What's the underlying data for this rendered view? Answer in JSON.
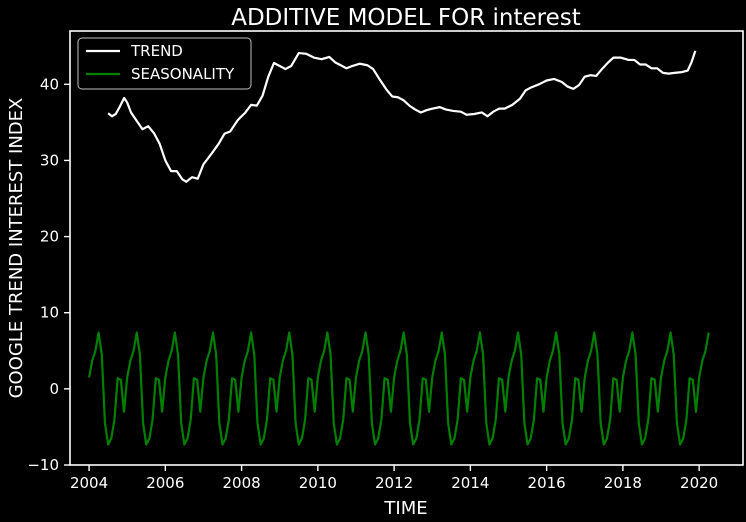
{
  "chart_data": {
    "type": "line",
    "title": "ADDITIVE MODEL FOR interest",
    "xlabel": "TIME",
    "ylabel": "GOOGLE TREND INTEREST INDEX",
    "xlim": [
      2003.5,
      2021.15
    ],
    "ylim": [
      -10,
      47
    ],
    "xticks": [
      2004,
      2006,
      2008,
      2010,
      2012,
      2014,
      2016,
      2018,
      2020
    ],
    "yticks": [
      -10,
      0,
      10,
      20,
      30,
      40
    ],
    "grid": false,
    "legend_position": "top-left",
    "background": "#000000",
    "series": [
      {
        "name": "TREND",
        "color": "#ffffff",
        "points": [
          [
            2004.5,
            36.2
          ],
          [
            2004.6,
            35.8
          ],
          [
            2004.7,
            36.1
          ],
          [
            2004.8,
            37.0
          ],
          [
            2004.92,
            38.2
          ],
          [
            2005.0,
            37.6
          ],
          [
            2005.1,
            36.3
          ],
          [
            2005.25,
            35.2
          ],
          [
            2005.4,
            34.1
          ],
          [
            2005.55,
            34.5
          ],
          [
            2005.7,
            33.6
          ],
          [
            2005.85,
            32.2
          ],
          [
            2006.0,
            30.0
          ],
          [
            2006.15,
            28.6
          ],
          [
            2006.3,
            28.6
          ],
          [
            2006.45,
            27.5
          ],
          [
            2006.55,
            27.2
          ],
          [
            2006.7,
            27.8
          ],
          [
            2006.85,
            27.6
          ],
          [
            2007.0,
            29.5
          ],
          [
            2007.2,
            30.8
          ],
          [
            2007.4,
            32.2
          ],
          [
            2007.55,
            33.5
          ],
          [
            2007.7,
            33.8
          ],
          [
            2007.9,
            35.3
          ],
          [
            2008.1,
            36.3
          ],
          [
            2008.25,
            37.3
          ],
          [
            2008.4,
            37.2
          ],
          [
            2008.55,
            38.5
          ],
          [
            2008.7,
            41.0
          ],
          [
            2008.85,
            42.8
          ],
          [
            2009.0,
            42.4
          ],
          [
            2009.15,
            42.0
          ],
          [
            2009.3,
            42.4
          ],
          [
            2009.5,
            44.1
          ],
          [
            2009.7,
            44.0
          ],
          [
            2009.9,
            43.5
          ],
          [
            2010.1,
            43.3
          ],
          [
            2010.3,
            43.6
          ],
          [
            2010.45,
            42.9
          ],
          [
            2010.6,
            42.5
          ],
          [
            2010.75,
            42.1
          ],
          [
            2010.9,
            42.4
          ],
          [
            2011.1,
            42.7
          ],
          [
            2011.3,
            42.5
          ],
          [
            2011.45,
            42.0
          ],
          [
            2011.6,
            40.8
          ],
          [
            2011.8,
            39.3
          ],
          [
            2011.95,
            38.4
          ],
          [
            2012.1,
            38.3
          ],
          [
            2012.25,
            37.9
          ],
          [
            2012.4,
            37.2
          ],
          [
            2012.55,
            36.7
          ],
          [
            2012.7,
            36.3
          ],
          [
            2012.85,
            36.6
          ],
          [
            2013.0,
            36.8
          ],
          [
            2013.2,
            37.0
          ],
          [
            2013.35,
            36.7
          ],
          [
            2013.55,
            36.5
          ],
          [
            2013.75,
            36.4
          ],
          [
            2013.9,
            36.0
          ],
          [
            2014.1,
            36.1
          ],
          [
            2014.3,
            36.3
          ],
          [
            2014.45,
            35.8
          ],
          [
            2014.6,
            36.4
          ],
          [
            2014.75,
            36.8
          ],
          [
            2014.9,
            36.8
          ],
          [
            2015.1,
            37.3
          ],
          [
            2015.3,
            38.1
          ],
          [
            2015.45,
            39.2
          ],
          [
            2015.6,
            39.6
          ],
          [
            2015.8,
            40.0
          ],
          [
            2016.0,
            40.5
          ],
          [
            2016.2,
            40.7
          ],
          [
            2016.4,
            40.3
          ],
          [
            2016.55,
            39.7
          ],
          [
            2016.7,
            39.4
          ],
          [
            2016.85,
            39.9
          ],
          [
            2017.0,
            41.0
          ],
          [
            2017.15,
            41.2
          ],
          [
            2017.3,
            41.1
          ],
          [
            2017.45,
            42.0
          ],
          [
            2017.6,
            42.8
          ],
          [
            2017.75,
            43.5
          ],
          [
            2017.95,
            43.5
          ],
          [
            2018.15,
            43.2
          ],
          [
            2018.3,
            43.2
          ],
          [
            2018.45,
            42.6
          ],
          [
            2018.6,
            42.6
          ],
          [
            2018.75,
            42.1
          ],
          [
            2018.9,
            42.1
          ],
          [
            2019.05,
            41.5
          ],
          [
            2019.2,
            41.4
          ],
          [
            2019.35,
            41.5
          ],
          [
            2019.55,
            41.6
          ],
          [
            2019.7,
            41.8
          ],
          [
            2019.8,
            42.9
          ],
          [
            2019.9,
            44.4
          ]
        ]
      },
      {
        "name": "SEASONALITY",
        "color": "#008000",
        "period": 1.0,
        "start": 2004.0,
        "end": 2020.33,
        "monthly_values": [
          1.5,
          3.7,
          5.0,
          7.4,
          4.5,
          -4.5,
          -7.3,
          -6.5,
          -4.0,
          1.4,
          1.2,
          -3.0
        ]
      }
    ]
  }
}
